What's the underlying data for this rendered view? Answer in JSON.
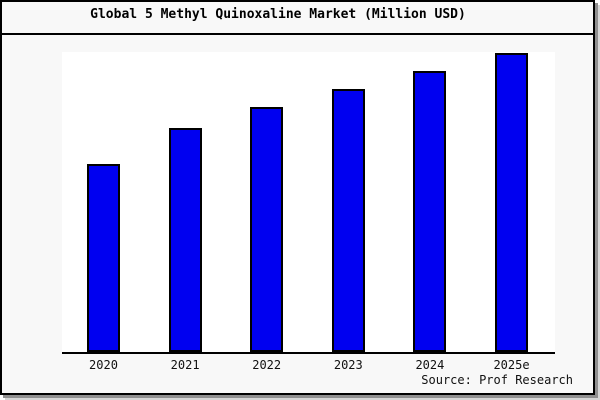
{
  "window": {
    "background": "#f8f8f8",
    "frame_border": "#000000"
  },
  "header": {
    "title": "Global 5 Methyl Quinoxaline Market (Million USD)"
  },
  "footer": {
    "source": "Source: Prof Research"
  },
  "chart_data": {
    "type": "bar",
    "title": "Global 5 Methyl Quinoxaline Market (Million USD)",
    "categories": [
      "2020",
      "2021",
      "2022",
      "2023",
      "2024",
      "2025e"
    ],
    "values_relative": [
      63,
      75,
      82,
      88,
      94,
      100
    ],
    "value_scale_note": "no y-axis ticks or data labels shown; values are relative bar heights with tallest bar = 100",
    "xlabel": "",
    "ylabel": "",
    "grid": false,
    "legend": false,
    "plot_background": "#ffffff",
    "bar_color": "#0000f0",
    "bar_border_color": "#000000",
    "axis_color": "#000000"
  }
}
